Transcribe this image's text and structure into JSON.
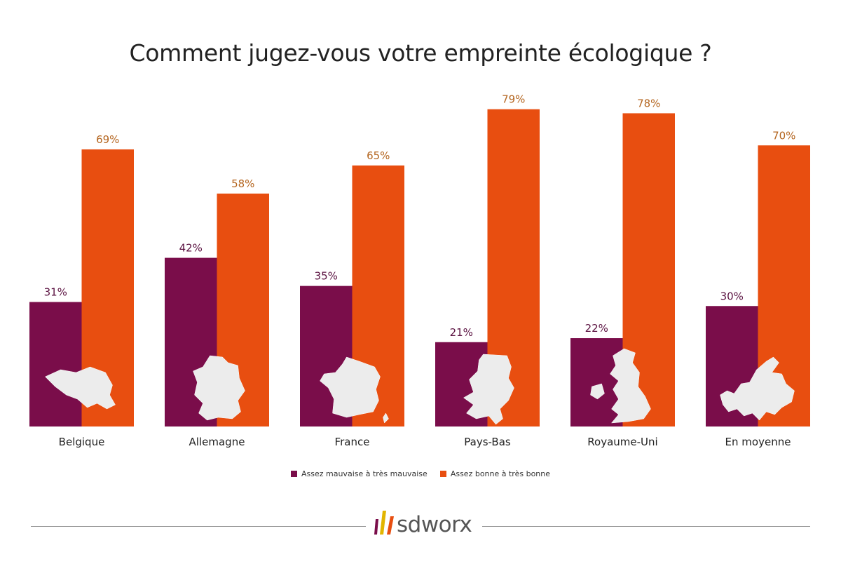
{
  "chart_data": {
    "type": "bar",
    "title": "Comment jugez-vous votre empreinte écologique ?",
    "categories": [
      "Belgique",
      "Allemagne",
      "France",
      "Pays-Bas",
      "Royaume-Uni",
      "En moyenne"
    ],
    "series": [
      {
        "name": "Assez mauvaise à très mauvaise",
        "values": [
          31,
          42,
          35,
          21,
          22,
          30
        ],
        "labels": [
          "31%",
          "42%",
          "35%",
          "21%",
          "22%",
          "30%"
        ],
        "color": "#7a0d4a"
      },
      {
        "name": "Assez bonne à très bonne",
        "values": [
          69,
          58,
          65,
          79,
          78,
          70
        ],
        "labels": [
          "69%",
          "58%",
          "65%",
          "79%",
          "78%",
          "70%"
        ],
        "color": "#e84e10"
      }
    ],
    "ylim": [
      0,
      80
    ],
    "grid": false,
    "legend_position": "bottom",
    "label_colors": [
      "#5a1140",
      "#b4651f"
    ]
  },
  "map_icons": [
    "belgium-map-icon",
    "germany-map-icon",
    "france-map-icon",
    "netherlands-map-icon",
    "united-kingdom-map-icon",
    "europe-map-icon"
  ],
  "logo": {
    "text": "sdworx",
    "mark_colors": [
      "#7a0d4a",
      "#e2b500",
      "#e84e10"
    ]
  }
}
